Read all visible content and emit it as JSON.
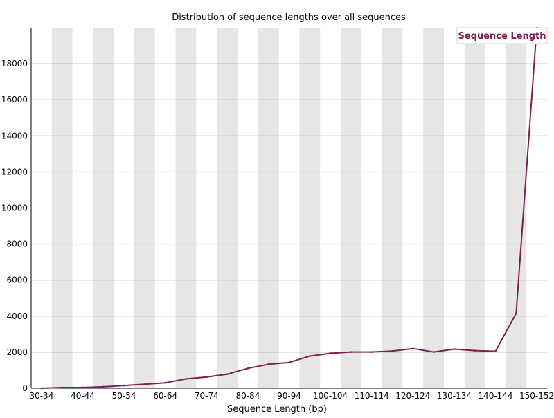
{
  "chart_data": {
    "type": "line",
    "title": "Distribution of sequence lengths over all sequences",
    "xlabel": "Sequence Length (bp)",
    "ylabel": "",
    "ylim": [
      0,
      20000
    ],
    "yticks": [
      0,
      2000,
      4000,
      6000,
      8000,
      10000,
      12000,
      14000,
      16000,
      18000
    ],
    "grid": true,
    "legend_position": "top-right",
    "x": [
      "30-34",
      "35-39",
      "40-44",
      "45-49",
      "50-54",
      "55-59",
      "60-64",
      "65-69",
      "70-74",
      "75-79",
      "80-84",
      "85-89",
      "90-94",
      "95-99",
      "100-104",
      "105-109",
      "110-114",
      "115-119",
      "120-124",
      "125-129",
      "130-134",
      "135-139",
      "140-144",
      "145-149",
      "150-152"
    ],
    "xtick_labels": [
      "30-34",
      "40-44",
      "50-54",
      "60-64",
      "70-74",
      "80-84",
      "90-94",
      "100-104",
      "110-114",
      "120-124",
      "130-134",
      "140-144",
      "150-152"
    ],
    "series": [
      {
        "name": "Sequence Length",
        "color": "#7f1f4f",
        "values": [
          0,
          40,
          40,
          80,
          150,
          220,
          300,
          520,
          620,
          780,
          1100,
          1330,
          1430,
          1780,
          1940,
          2010,
          2010,
          2060,
          2200,
          2010,
          2170,
          2090,
          2050,
          4150,
          20000
        ]
      }
    ]
  }
}
